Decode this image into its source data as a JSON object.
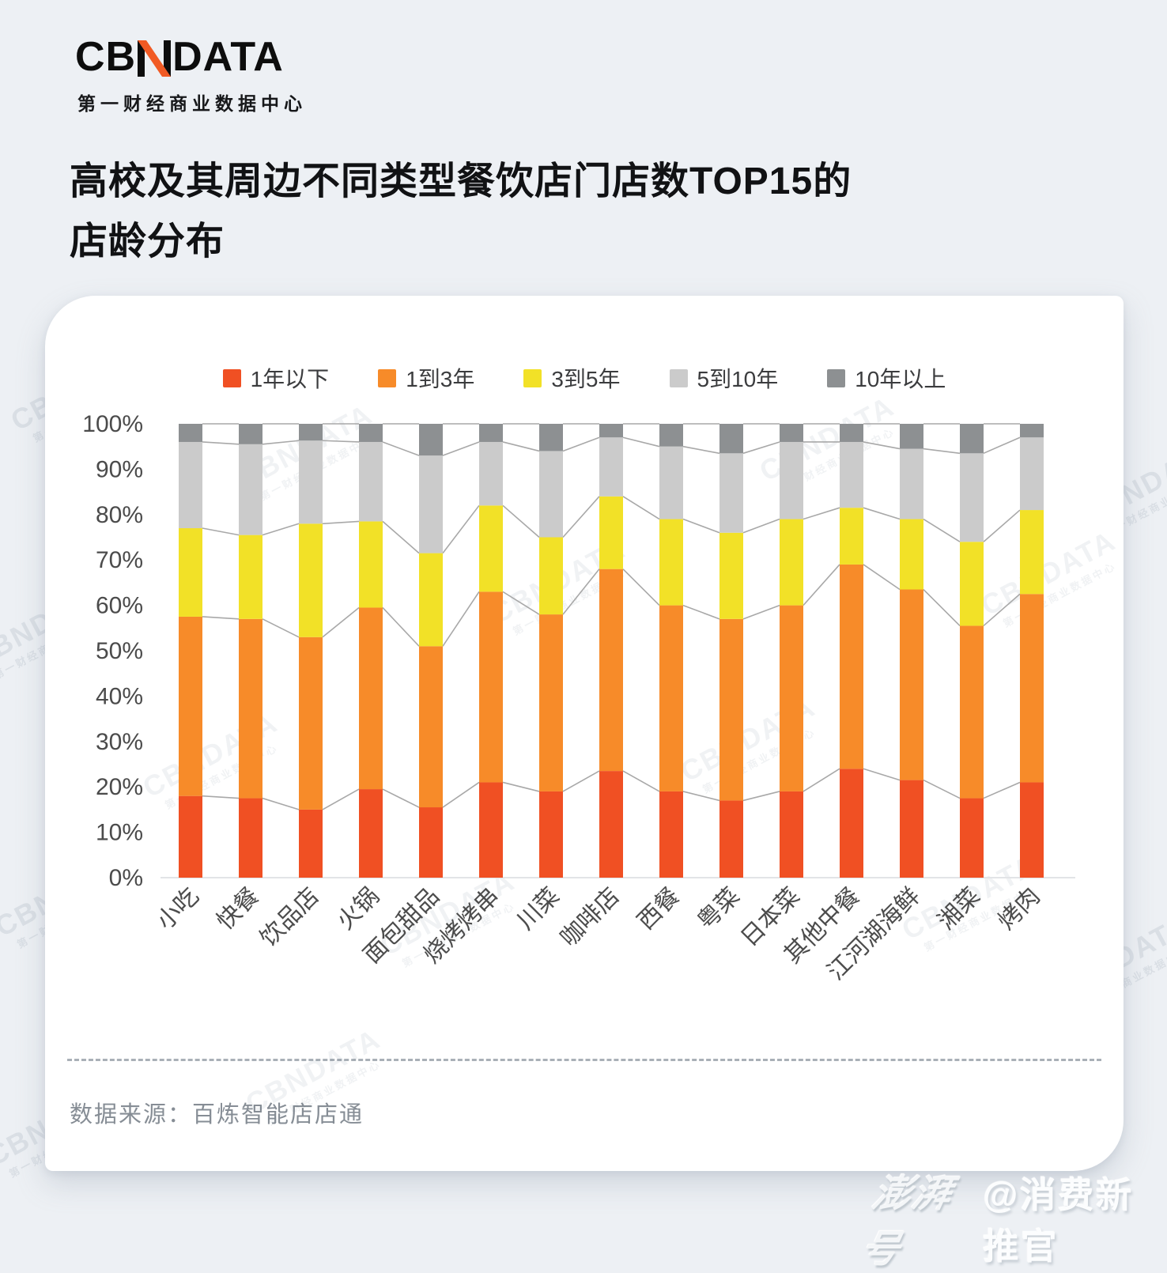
{
  "brand": {
    "logo_cb": "CB",
    "logo_data": "DATA",
    "tagline": "第一财经商业数据中心"
  },
  "title": {
    "line1": "高校及其周边不同类型餐饮店门店数TOP15的",
    "line2": "店龄分布"
  },
  "footer": {
    "source_label": "数据来源：百炼智能店店通"
  },
  "watermark": {
    "brand": "CBNDATA",
    "tagline": "第一财经商业数据中心",
    "badge_script": "澎湃号",
    "badge_handle": "@消费新推官"
  },
  "chart_data": {
    "type": "bar",
    "stacked": true,
    "unit": "%",
    "title": "高校及其周边不同类型餐饮店门店数TOP15的店龄分布",
    "categories": [
      "小吃",
      "快餐",
      "饮品店",
      "火锅",
      "面包甜品",
      "烧烤烤串",
      "川菜",
      "咖啡店",
      "西餐",
      "粤菜",
      "日本菜",
      "其他中餐",
      "江河湖海鲜",
      "湘菜",
      "烤肉"
    ],
    "series": [
      {
        "name": "1年以下",
        "color": "#F05023",
        "values": [
          18,
          17.5,
          15,
          19.5,
          15.5,
          21,
          19,
          23.5,
          19,
          17,
          19,
          24,
          21.5,
          17.5,
          21
        ]
      },
      {
        "name": "1到3年",
        "color": "#F78B29",
        "values": [
          39.5,
          39.5,
          38,
          40,
          35.5,
          42,
          39,
          44.5,
          41,
          40,
          41,
          45,
          42,
          38,
          41.5
        ]
      },
      {
        "name": "3到5年",
        "color": "#F2E127",
        "values": [
          19.5,
          18.5,
          25,
          19,
          20.5,
          19,
          17,
          16,
          19,
          19,
          19,
          12.5,
          15.5,
          18.5,
          18.5
        ]
      },
      {
        "name": "5到10年",
        "color": "#CBCBCB",
        "values": [
          19,
          20,
          18.3,
          17.5,
          21.5,
          14,
          19,
          13,
          16,
          17.5,
          17,
          14.5,
          15.5,
          19.5,
          16
        ]
      },
      {
        "name": "10年以上",
        "color": "#8D9092",
        "values": [
          4,
          4.5,
          3.7,
          4,
          7,
          4,
          6,
          3,
          5,
          6.5,
          4,
          4,
          5.5,
          6.5,
          3
        ]
      }
    ],
    "ylabel": "",
    "ylim": [
      0,
      100
    ],
    "yticks": [
      "0%",
      "10%",
      "20%",
      "30%",
      "40%",
      "50%",
      "60%",
      "70%",
      "80%",
      "90%",
      "100%"
    ],
    "legend_position": "top",
    "grid": false,
    "connector_lines": true
  },
  "colors": {
    "background": "#edf0f4",
    "card": "#ffffff",
    "axis_text": "#4b4b4b",
    "axis_line": "#e2e4e7",
    "connector": "#a8a8a8",
    "logo_accent": "#F15A24"
  }
}
